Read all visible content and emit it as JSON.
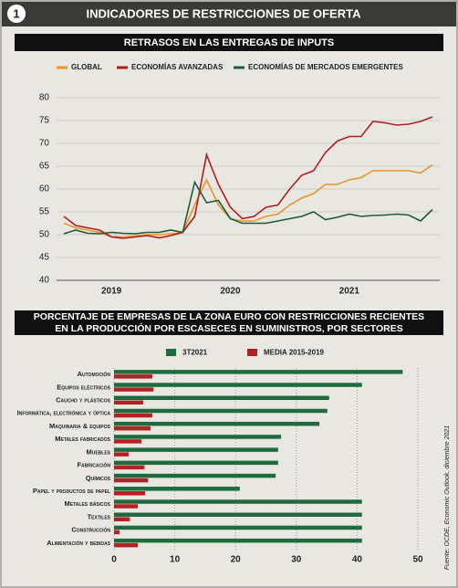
{
  "header": {
    "number": "1",
    "title": "INDICADORES DE RESTRICCIONES DE OFERTA"
  },
  "chart_data": [
    {
      "type": "line",
      "title": "RETRASOS EN LAS ENTREGAS DE INPUTS",
      "categories": [
        null,
        null,
        null,
        null,
        "2019",
        null,
        null,
        null,
        null,
        null,
        null,
        null,
        null,
        null,
        "2020",
        null,
        null,
        null,
        null,
        null,
        null,
        null,
        null,
        null,
        "2021",
        null,
        null,
        null,
        null,
        null,
        null,
        null
      ],
      "ylim": [
        40,
        80
      ],
      "yticks": [
        40,
        45,
        50,
        55,
        60,
        65,
        70,
        75,
        80
      ],
      "grid": true,
      "legend": "top",
      "series": [
        {
          "name": "GLOBAL",
          "color": "#e8962a",
          "values": [
            52.5,
            51.5,
            51,
            50.5,
            49.5,
            49.5,
            49.7,
            50,
            50,
            50.2,
            50.5,
            56.5,
            62,
            56.5,
            53.5,
            53,
            53,
            54,
            54.5,
            56.5,
            58,
            59,
            61,
            61,
            62,
            62.5,
            64,
            64,
            64,
            64,
            63.5,
            65.3
          ]
        },
        {
          "name": "ECONOMÍAS AVANZADAS",
          "color": "#b01e1e",
          "values": [
            54,
            52,
            51.5,
            51,
            49.5,
            49.2,
            49.5,
            49.8,
            49.3,
            49.8,
            50.5,
            54,
            67.5,
            61,
            56,
            53.5,
            54,
            56,
            56.5,
            60,
            63,
            64,
            68,
            70.5,
            71.5,
            71.5,
            74.8,
            74.5,
            74,
            74.2,
            74.8,
            75.8
          ]
        },
        {
          "name": "ECONOMÍAS DE MERCADOS EMERGENTES",
          "color": "#1e5c35",
          "values": [
            50.2,
            51,
            50.3,
            50.2,
            50.5,
            50.3,
            50.2,
            50.5,
            50.5,
            51,
            50.5,
            61.5,
            57,
            57.5,
            53.5,
            52.5,
            52.5,
            52.5,
            53,
            53.5,
            54,
            55,
            53.3,
            53.8,
            54.5,
            54,
            54.2,
            54.3,
            54.5,
            54.3,
            53,
            55.5
          ]
        }
      ]
    },
    {
      "type": "bar",
      "orientation": "horizontal",
      "title": [
        "PORCENTAJE DE EMPRESAS DE LA ZONA EURO CON RESTRICCIONES RECIENTES",
        "EN LA PRODUCCIÓN POR ESCASECES EN SUMINISTROS, POR SECTORES"
      ],
      "categories": [
        "Automoción",
        "Equipos eléctricos",
        "Caucho y plásticos",
        "Informática, electrónica y óptica",
        "Maquinaria & equipos",
        "Metales fabricados",
        "Muebles",
        "Fabricación",
        "Químicos",
        "Papel y productos de papel",
        "Metales básicos",
        "Textiles",
        "Construcción",
        "Alimentación y bebidas"
      ],
      "xlim": [
        0,
        50
      ],
      "xticks": [
        0,
        10,
        20,
        30,
        40,
        50
      ],
      "grid": true,
      "legend": "top",
      "series": [
        {
          "name": "3T2021",
          "color": "#1f6b3e",
          "values": [
            47.5,
            40.8,
            35.4,
            35.1,
            33.8,
            27.5,
            27,
            27,
            26.6,
            20.7,
            40.8,
            40.8,
            40.8,
            40.8
          ]
        },
        {
          "name": "MEDIA 2015-2019",
          "color": "#b22222",
          "values": [
            6.3,
            6.5,
            4.8,
            6.3,
            6,
            4.5,
            2.4,
            5,
            5.6,
            5.1,
            3.9,
            2.6,
            0.9,
            3.9
          ]
        }
      ]
    }
  ],
  "source": "Fuente: OCDE, Economic Outlook, diciembre 2021"
}
